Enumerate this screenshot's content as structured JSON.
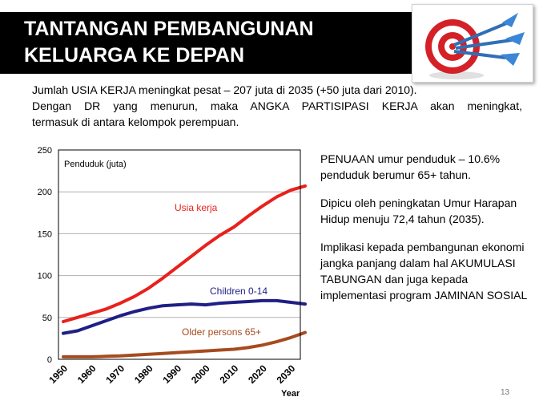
{
  "title": {
    "line1": "TANTANGAN PEMBANGUNAN",
    "line2": "KELUARGA KE DEPAN"
  },
  "logo": {
    "icon": "dartboard-target-with-darts-icon",
    "colors": {
      "ring": "#d42027",
      "dart": "#2f6fb5"
    }
  },
  "intro": {
    "line1": "Jumlah USIA KERJA meningkat pesat – 207 juta di 2035 (+50 juta dari 2010).",
    "line2": "Dengan DR yang menurun, maka ANGKA PARTISIPASI KERJA akan meningkat,",
    "line3": "termasuk di antara kelompok perempuan."
  },
  "side_text": {
    "p1": "PENUAAN umur penduduk – 10.6% penduduk berumur 65+ tahun.",
    "p2": "Dipicu oleh peningkatan Umur Harapan Hidup menuju 72,4 tahun (2035).",
    "p3": "Implikasi kepada pembangunan ekonomi jangka panjang dalam hal AKUMULASI TABUNGAN dan juga kepada implementasi program JAMINAN SOSIAL"
  },
  "page_number": "13",
  "chart_data": {
    "type": "line",
    "title": "Penduduk (juta)",
    "xlabel": "Year",
    "ylabel": "Penduduk (juta)",
    "xlim": [
      1950,
      2035
    ],
    "ylim": [
      0,
      250
    ],
    "xticks": [
      1950,
      1960,
      1970,
      1980,
      1990,
      2000,
      2010,
      2020,
      2030
    ],
    "yticks": [
      0,
      50,
      100,
      150,
      200,
      250
    ],
    "grid": "horizontal",
    "legend": "inline labels",
    "series": [
      {
        "name": "Usia kerja",
        "color": "#e8211c",
        "x": [
          1950,
          1955,
          1960,
          1965,
          1970,
          1975,
          1980,
          1985,
          1990,
          1995,
          2000,
          2005,
          2010,
          2015,
          2020,
          2025,
          2030,
          2035
        ],
        "y": [
          45,
          50,
          55,
          60,
          67,
          75,
          85,
          97,
          110,
          123,
          136,
          148,
          158,
          171,
          183,
          194,
          202,
          207
        ]
      },
      {
        "name": "Children 0-14",
        "color": "#1f1f86",
        "x": [
          1950,
          1955,
          1960,
          1965,
          1970,
          1975,
          1980,
          1985,
          1990,
          1995,
          2000,
          2005,
          2010,
          2015,
          2020,
          2025,
          2030,
          2035
        ],
        "y": [
          31,
          34,
          40,
          46,
          52,
          57,
          61,
          64,
          65,
          66,
          65,
          67,
          68,
          69,
          70,
          70,
          68,
          66
        ]
      },
      {
        "name": "Older persons 65+",
        "color": "#a64b1f",
        "x": [
          1950,
          1955,
          1960,
          1965,
          1970,
          1975,
          1980,
          1985,
          1990,
          1995,
          2000,
          2005,
          2010,
          2015,
          2020,
          2025,
          2030,
          2035
        ],
        "y": [
          3,
          3,
          3,
          3.5,
          4,
          5,
          6,
          7,
          8,
          9,
          10,
          11,
          12,
          14,
          17,
          21,
          26,
          32
        ]
      }
    ]
  }
}
